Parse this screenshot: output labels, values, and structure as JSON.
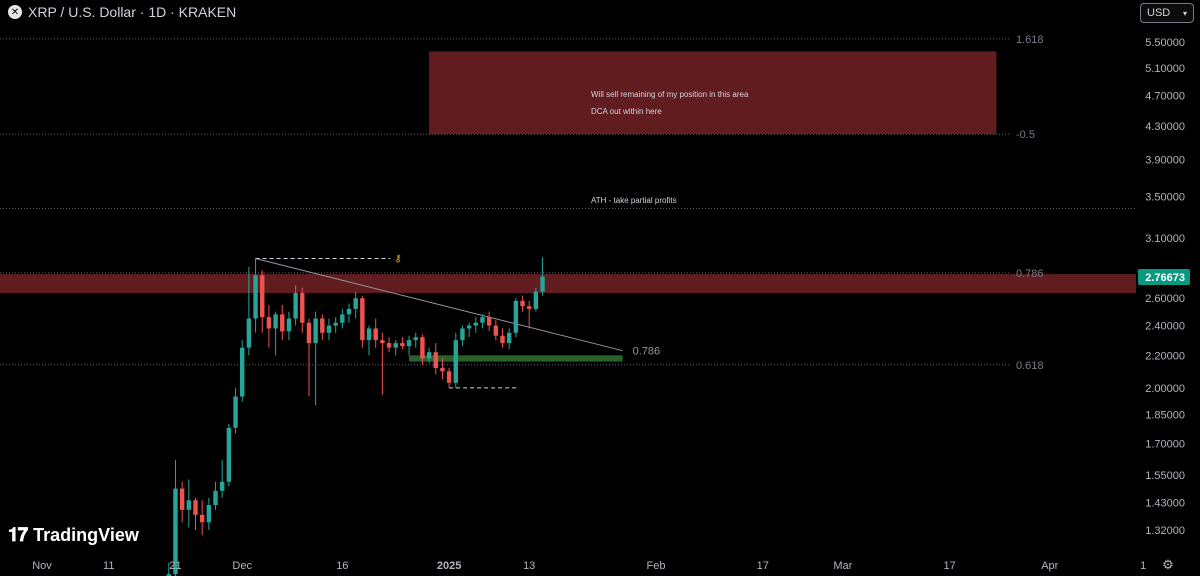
{
  "header": {
    "symbol_icon": "x-logo-icon",
    "title": "XRP / U.S. Dollar · 1D · KRAKEN"
  },
  "currency_selector": {
    "value": "USD"
  },
  "branding": {
    "name": "TradingView"
  },
  "settings_icon": "gear-icon",
  "chart_data": {
    "type": "candlestick",
    "ylim": [
      1.2,
      5.9
    ],
    "scale": "log",
    "y_ticks": [
      "5.50000",
      "5.10000",
      "4.70000",
      "4.30000",
      "3.90000",
      "3.50000",
      "3.10000",
      "2.60000",
      "2.40000",
      "2.20000",
      "2.00000",
      "1.85000",
      "1.70000",
      "1.55000",
      "1.43000",
      "1.32000"
    ],
    "x_ticks": [
      "Nov",
      "11",
      "21",
      "Dec",
      "16",
      "2025",
      "13",
      "Feb",
      "17",
      "Mar",
      "17",
      "Apr",
      "1"
    ],
    "last_price": "2.76673",
    "last_price_color": "#089981",
    "colors": {
      "up": "#26a69a",
      "down": "#ef5350",
      "zone_red": "#6b1f22",
      "zone_green": "#2e6b2f"
    },
    "candles": [
      {
        "date": "2024-11-20",
        "o": 1.12,
        "h": 1.2,
        "l": 1.09,
        "c": 1.16
      },
      {
        "date": "2024-11-21",
        "o": 1.16,
        "h": 1.62,
        "l": 1.13,
        "c": 1.49
      },
      {
        "date": "2024-11-22",
        "o": 1.49,
        "h": 1.52,
        "l": 1.35,
        "c": 1.4
      },
      {
        "date": "2024-11-23",
        "o": 1.4,
        "h": 1.53,
        "l": 1.33,
        "c": 1.44
      },
      {
        "date": "2024-11-24",
        "o": 1.44,
        "h": 1.45,
        "l": 1.32,
        "c": 1.38
      },
      {
        "date": "2024-11-25",
        "o": 1.38,
        "h": 1.44,
        "l": 1.3,
        "c": 1.35
      },
      {
        "date": "2024-11-26",
        "o": 1.35,
        "h": 1.45,
        "l": 1.32,
        "c": 1.42
      },
      {
        "date": "2024-11-27",
        "o": 1.42,
        "h": 1.52,
        "l": 1.4,
        "c": 1.48
      },
      {
        "date": "2024-11-28",
        "o": 1.48,
        "h": 1.62,
        "l": 1.45,
        "c": 1.52
      },
      {
        "date": "2024-11-29",
        "o": 1.52,
        "h": 1.8,
        "l": 1.5,
        "c": 1.78
      },
      {
        "date": "2024-11-30",
        "o": 1.78,
        "h": 2.0,
        "l": 1.75,
        "c": 1.95
      },
      {
        "date": "2024-12-01",
        "o": 1.95,
        "h": 2.3,
        "l": 1.92,
        "c": 2.25
      },
      {
        "date": "2024-12-02",
        "o": 2.25,
        "h": 2.85,
        "l": 2.2,
        "c": 2.45
      },
      {
        "date": "2024-12-03",
        "o": 2.45,
        "h": 2.92,
        "l": 2.35,
        "c": 2.78
      },
      {
        "date": "2024-12-04",
        "o": 2.78,
        "h": 2.82,
        "l": 2.35,
        "c": 2.46
      },
      {
        "date": "2024-12-05",
        "o": 2.46,
        "h": 2.55,
        "l": 2.25,
        "c": 2.38
      },
      {
        "date": "2024-12-06",
        "o": 2.38,
        "h": 2.5,
        "l": 2.2,
        "c": 2.48
      },
      {
        "date": "2024-12-07",
        "o": 2.48,
        "h": 2.55,
        "l": 2.3,
        "c": 2.36
      },
      {
        "date": "2024-12-08",
        "o": 2.36,
        "h": 2.5,
        "l": 2.3,
        "c": 2.45
      },
      {
        "date": "2024-12-09",
        "o": 2.45,
        "h": 2.7,
        "l": 2.4,
        "c": 2.64
      },
      {
        "date": "2024-12-10",
        "o": 2.64,
        "h": 2.68,
        "l": 2.35,
        "c": 2.42
      },
      {
        "date": "2024-12-11",
        "o": 2.42,
        "h": 2.45,
        "l": 1.95,
        "c": 2.28
      },
      {
        "date": "2024-12-12",
        "o": 2.28,
        "h": 2.5,
        "l": 1.9,
        "c": 2.45
      },
      {
        "date": "2024-12-13",
        "o": 2.45,
        "h": 2.48,
        "l": 2.3,
        "c": 2.35
      },
      {
        "date": "2024-12-14",
        "o": 2.35,
        "h": 2.45,
        "l": 2.3,
        "c": 2.4
      },
      {
        "date": "2024-12-15",
        "o": 2.4,
        "h": 2.46,
        "l": 2.35,
        "c": 2.42
      },
      {
        "date": "2024-12-16",
        "o": 2.42,
        "h": 2.52,
        "l": 2.38,
        "c": 2.48
      },
      {
        "date": "2024-12-17",
        "o": 2.48,
        "h": 2.56,
        "l": 2.42,
        "c": 2.52
      },
      {
        "date": "2024-12-18",
        "o": 2.52,
        "h": 2.65,
        "l": 2.45,
        "c": 2.6
      },
      {
        "date": "2024-12-19",
        "o": 2.6,
        "h": 2.62,
        "l": 2.25,
        "c": 2.3
      },
      {
        "date": "2024-12-20",
        "o": 2.3,
        "h": 2.4,
        "l": 2.2,
        "c": 2.38
      },
      {
        "date": "2024-12-21",
        "o": 2.38,
        "h": 2.45,
        "l": 2.25,
        "c": 2.3
      },
      {
        "date": "2024-12-22",
        "o": 2.3,
        "h": 2.35,
        "l": 1.96,
        "c": 2.28
      },
      {
        "date": "2024-12-23",
        "o": 2.28,
        "h": 2.32,
        "l": 2.22,
        "c": 2.25
      },
      {
        "date": "2024-12-24",
        "o": 2.25,
        "h": 2.3,
        "l": 2.2,
        "c": 2.28
      },
      {
        "date": "2024-12-25",
        "o": 2.28,
        "h": 2.32,
        "l": 2.24,
        "c": 2.26
      },
      {
        "date": "2024-12-26",
        "o": 2.26,
        "h": 2.33,
        "l": 2.2,
        "c": 2.3
      },
      {
        "date": "2024-12-27",
        "o": 2.3,
        "h": 2.35,
        "l": 2.25,
        "c": 2.32
      },
      {
        "date": "2024-12-28",
        "o": 2.32,
        "h": 2.34,
        "l": 2.14,
        "c": 2.18
      },
      {
        "date": "2024-12-29",
        "o": 2.18,
        "h": 2.25,
        "l": 2.15,
        "c": 2.22
      },
      {
        "date": "2024-12-30",
        "o": 2.22,
        "h": 2.28,
        "l": 2.08,
        "c": 2.12
      },
      {
        "date": "2024-12-31",
        "o": 2.12,
        "h": 2.18,
        "l": 2.05,
        "c": 2.1
      },
      {
        "date": "2025-01-01",
        "o": 2.1,
        "h": 2.12,
        "l": 2.0,
        "c": 2.03
      },
      {
        "date": "2025-01-02",
        "o": 2.03,
        "h": 2.35,
        "l": 2.0,
        "c": 2.3
      },
      {
        "date": "2025-01-03",
        "o": 2.3,
        "h": 2.4,
        "l": 2.26,
        "c": 2.38
      },
      {
        "date": "2025-01-04",
        "o": 2.38,
        "h": 2.42,
        "l": 2.32,
        "c": 2.4
      },
      {
        "date": "2025-01-05",
        "o": 2.4,
        "h": 2.46,
        "l": 2.35,
        "c": 2.42
      },
      {
        "date": "2025-01-06",
        "o": 2.42,
        "h": 2.48,
        "l": 2.38,
        "c": 2.46
      },
      {
        "date": "2025-01-07",
        "o": 2.46,
        "h": 2.5,
        "l": 2.36,
        "c": 2.4
      },
      {
        "date": "2025-01-08",
        "o": 2.4,
        "h": 2.44,
        "l": 2.3,
        "c": 2.33
      },
      {
        "date": "2025-01-09",
        "o": 2.33,
        "h": 2.38,
        "l": 2.25,
        "c": 2.28
      },
      {
        "date": "2025-01-10",
        "o": 2.28,
        "h": 2.38,
        "l": 2.24,
        "c": 2.35
      },
      {
        "date": "2025-01-11",
        "o": 2.35,
        "h": 2.6,
        "l": 2.32,
        "c": 2.58
      },
      {
        "date": "2025-01-12",
        "o": 2.58,
        "h": 2.62,
        "l": 2.5,
        "c": 2.54
      },
      {
        "date": "2025-01-13",
        "o": 2.54,
        "h": 2.58,
        "l": 2.38,
        "c": 2.52
      },
      {
        "date": "2025-01-14",
        "o": 2.52,
        "h": 2.68,
        "l": 2.5,
        "c": 2.65
      },
      {
        "date": "2025-01-15",
        "o": 2.65,
        "h": 2.93,
        "l": 2.62,
        "c": 2.77
      }
    ],
    "annotations": {
      "zones": [
        {
          "kind": "sell-zone",
          "y_low": 4.2,
          "y_high": 5.35,
          "x_from": "2024-12-29",
          "x_to": "2025-03-24",
          "color": "#6b1f22"
        },
        {
          "kind": "resistance-band",
          "y_low": 2.64,
          "y_high": 2.79,
          "x_from": "2024-11-03",
          "x_to": "2025-04-12",
          "color": "#6b1f22"
        },
        {
          "kind": "support-band",
          "y_low": 2.16,
          "y_high": 2.2,
          "x_from": "2024-12-26",
          "x_to": "2025-01-27",
          "color": "#2e6b2f"
        }
      ],
      "fib_levels": [
        {
          "label": "1.618",
          "y": 5.55
        },
        {
          "label": "-0.5",
          "y": 4.2
        },
        {
          "label": "0.786",
          "y": 2.8
        },
        {
          "label": "0.618",
          "y": 2.14
        }
      ],
      "ath_line": {
        "y": 3.38
      },
      "texts": {
        "zone_note_1": "Will sell remaining of my position in this area",
        "zone_note_2": "DCA out within here",
        "ath_note": "ATH - take partial profits",
        "trendline_label": "0.786"
      },
      "trendline": {
        "x1": "2024-12-03",
        "y1": 2.92,
        "x2": "2025-01-27",
        "y2": 2.23
      },
      "high_marker": {
        "x1": "2024-12-03",
        "x2": "2024-12-19",
        "y": 2.92
      },
      "low_marker": {
        "x1": "2025-01-01",
        "x2": "2025-01-10",
        "y": 2.0
      }
    }
  }
}
